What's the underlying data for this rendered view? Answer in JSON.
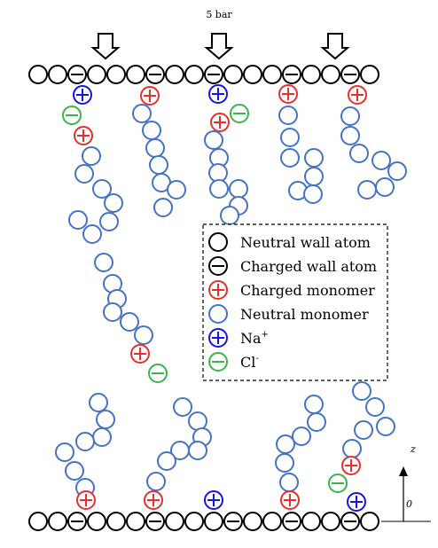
{
  "pressure_label": "5 bar",
  "legend": {
    "items": [
      {
        "key": "neutral_wall",
        "text": "Neutral wall atom"
      },
      {
        "key": "charged_wall",
        "text": "Charged wall atom"
      },
      {
        "key": "charged_monomer",
        "text": "Charged monomer"
      },
      {
        "key": "neutral_monomer",
        "text": "Neutral monomer"
      },
      {
        "key": "na",
        "text": "Na",
        "sup": "+"
      },
      {
        "key": "cl",
        "text": "Cl",
        "sup": "-"
      }
    ]
  },
  "axis": {
    "z_label": "z",
    "zero_label": "0"
  },
  "colors": {
    "wall": "#000000",
    "monomer_neutral": "#4472c4",
    "monomer_charged": "#e8302a",
    "na": "#1414e6",
    "cl": "#3ab54a"
  },
  "particle_counts": {
    "top_wall_atoms": 18,
    "bottom_wall_atoms": 18
  }
}
